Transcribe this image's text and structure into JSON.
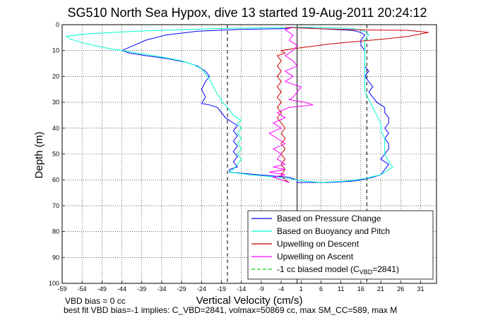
{
  "chart_data": {
    "type": "line",
    "title": "SG510 North Sea Hypox, dive 13 started 19-Aug-2011 20:24:12",
    "xlabel": "Vertical Velocity (cm/s)",
    "ylabel": "Depth (m)",
    "xlim": [
      -59,
      35
    ],
    "ylim": [
      0,
      100
    ],
    "y_reversed": true,
    "grid": true,
    "legend_position": "bottom-right",
    "x_ticks": [
      -59,
      -54,
      -49,
      -44,
      -39,
      -34,
      -29,
      -24,
      -19,
      -14,
      -9,
      -4,
      1,
      6,
      11,
      16,
      21,
      26,
      31
    ],
    "y_ticks": [
      0,
      10,
      20,
      30,
      40,
      50,
      60,
      70,
      80,
      90,
      100
    ],
    "vertical_lines": [
      {
        "x": -17.5,
        "style": "dashed",
        "color": "#000000"
      },
      {
        "x": 17.5,
        "style": "dashed",
        "color": "#000000"
      },
      {
        "x": 0,
        "style": "solid",
        "color": "#000000"
      }
    ],
    "series": [
      {
        "name": "Based on Pressure Change",
        "color": "#0000ff",
        "style": "solid",
        "points": [
          [
            -2,
            1
          ],
          [
            -2,
            1.5
          ],
          [
            -14,
            1.8
          ],
          [
            -25,
            2.5
          ],
          [
            -33,
            4
          ],
          [
            -38,
            6
          ],
          [
            -41,
            8
          ],
          [
            -44,
            10
          ],
          [
            -42,
            11
          ],
          [
            -38,
            12
          ],
          [
            -33,
            13
          ],
          [
            -28,
            14.5
          ],
          [
            -25,
            16
          ],
          [
            -23,
            18
          ],
          [
            -22,
            20
          ],
          [
            -23,
            22
          ],
          [
            -24,
            25
          ],
          [
            -23,
            28
          ],
          [
            -24,
            30.5
          ],
          [
            -22,
            31
          ],
          [
            -20,
            32
          ],
          [
            -19,
            34
          ],
          [
            -18,
            36
          ],
          [
            -16,
            38
          ],
          [
            -15,
            39
          ],
          [
            -16,
            41
          ],
          [
            -15,
            43
          ],
          [
            -16,
            45
          ],
          [
            -15,
            47
          ],
          [
            -16,
            49
          ],
          [
            -15,
            51
          ],
          [
            -16,
            53
          ],
          [
            -15,
            55
          ],
          [
            -17,
            56
          ],
          [
            -17,
            57
          ],
          [
            -10,
            58
          ],
          [
            -2,
            59
          ],
          [
            0,
            60
          ],
          [
            0,
            61
          ],
          [
            1,
            61
          ],
          [
            8,
            61
          ],
          [
            14,
            60.5
          ],
          [
            16,
            60
          ],
          [
            19,
            59
          ],
          [
            21,
            58
          ],
          [
            22,
            56
          ],
          [
            23,
            54
          ],
          [
            21,
            52
          ],
          [
            22,
            50
          ],
          [
            23,
            48
          ],
          [
            23,
            46
          ],
          [
            22,
            44
          ],
          [
            23,
            42
          ],
          [
            22,
            40
          ],
          [
            23,
            38
          ],
          [
            23,
            36
          ],
          [
            22,
            34
          ],
          [
            22,
            32
          ],
          [
            20,
            30
          ],
          [
            19,
            28
          ],
          [
            18,
            26
          ],
          [
            19,
            24
          ],
          [
            18,
            22
          ],
          [
            17,
            20
          ],
          [
            18,
            18
          ],
          [
            17,
            16
          ],
          [
            17,
            14
          ],
          [
            17,
            12
          ],
          [
            17,
            10
          ],
          [
            16,
            8
          ],
          [
            16,
            6
          ],
          [
            17,
            4
          ],
          [
            16,
            3
          ],
          [
            14,
            2.2
          ],
          [
            5,
            1.5
          ],
          [
            0,
            1
          ],
          [
            -2,
            1
          ]
        ]
      },
      {
        "name": "Based on Buoyancy and Pitch",
        "color": "#00ffcc",
        "style": "solid",
        "points": [
          [
            -1,
            1
          ],
          [
            -20,
            1.5
          ],
          [
            -40,
            2.5
          ],
          [
            -52,
            3.5
          ],
          [
            -58,
            4.5
          ],
          [
            -57,
            5.5
          ],
          [
            -54,
            7
          ],
          [
            -48,
            9
          ],
          [
            -44,
            10
          ],
          [
            -40,
            11
          ],
          [
            -34,
            12.5
          ],
          [
            -29,
            14
          ],
          [
            -26,
            15.5
          ],
          [
            -24,
            17
          ],
          [
            -23,
            19
          ],
          [
            -22,
            21
          ],
          [
            -21,
            24
          ],
          [
            -20,
            27
          ],
          [
            -19,
            29
          ],
          [
            -19,
            30
          ],
          [
            -18,
            31
          ],
          [
            -17,
            33
          ],
          [
            -16,
            35
          ],
          [
            -14,
            37
          ],
          [
            -15,
            38
          ],
          [
            -14,
            40
          ],
          [
            -15,
            42
          ],
          [
            -14,
            44
          ],
          [
            -15,
            46
          ],
          [
            -14,
            48
          ],
          [
            -15,
            50
          ],
          [
            -14,
            52
          ],
          [
            -15,
            54
          ],
          [
            -16,
            56
          ],
          [
            -17,
            57
          ],
          [
            -12,
            58
          ],
          [
            -5,
            59
          ],
          [
            0,
            60
          ],
          [
            2,
            60.5
          ],
          [
            6,
            61
          ],
          [
            12,
            60.5
          ],
          [
            17,
            59.5
          ],
          [
            21,
            58
          ],
          [
            24,
            55
          ],
          [
            23,
            53
          ],
          [
            22,
            50
          ],
          [
            22,
            47
          ],
          [
            22,
            44
          ],
          [
            21,
            41
          ],
          [
            21,
            38
          ],
          [
            20,
            35
          ],
          [
            19,
            32
          ],
          [
            18,
            29
          ],
          [
            17,
            26
          ],
          [
            17,
            23
          ],
          [
            17,
            20
          ],
          [
            17,
            17
          ],
          [
            17,
            14
          ],
          [
            17,
            11
          ],
          [
            17,
            8
          ],
          [
            17,
            6
          ],
          [
            18,
            4
          ],
          [
            17,
            2.5
          ],
          [
            14,
            1.5
          ],
          [
            5,
            1
          ],
          [
            -1,
            1
          ]
        ]
      },
      {
        "name": "Upwelling on Descent",
        "color": "#cc0000",
        "style": "solid",
        "points": [
          [
            -3,
            1
          ],
          [
            4,
            1.5
          ],
          [
            15,
            2
          ],
          [
            28,
            2.2
          ],
          [
            33,
            3
          ],
          [
            28,
            4.5
          ],
          [
            22,
            5.5
          ],
          [
            15,
            6.5
          ],
          [
            8,
            7.5
          ],
          [
            3,
            8.5
          ],
          [
            -2,
            9.5
          ],
          [
            -4,
            10
          ],
          [
            -3,
            11
          ],
          [
            -5,
            12
          ],
          [
            -4,
            14
          ],
          [
            -5,
            16
          ],
          [
            -4,
            18
          ],
          [
            -5,
            20
          ],
          [
            -4,
            22
          ],
          [
            -5,
            24
          ],
          [
            -4,
            26
          ],
          [
            -5,
            28
          ],
          [
            -4,
            30
          ],
          [
            -5,
            32
          ],
          [
            -4,
            34
          ],
          [
            -5,
            36
          ],
          [
            -4,
            38
          ],
          [
            -3,
            40
          ],
          [
            -4,
            42
          ],
          [
            -3,
            44
          ],
          [
            -4,
            46
          ],
          [
            -3,
            48
          ],
          [
            -4,
            50
          ],
          [
            -3,
            52
          ],
          [
            -4,
            54
          ],
          [
            -3,
            56
          ],
          [
            -4,
            58
          ],
          [
            -3,
            60
          ],
          [
            -2,
            61
          ]
        ]
      },
      {
        "name": "Upwelling on Ascent",
        "color": "#ff00ff",
        "style": "solid",
        "points": [
          [
            -2,
            61
          ],
          [
            -6,
            59
          ],
          [
            -3,
            58
          ],
          [
            -7,
            57
          ],
          [
            -3,
            56
          ],
          [
            -6,
            55
          ],
          [
            -3,
            54
          ],
          [
            -5,
            52
          ],
          [
            -4,
            50
          ],
          [
            -6,
            48
          ],
          [
            -3,
            46
          ],
          [
            -5,
            44
          ],
          [
            -7,
            42
          ],
          [
            -4,
            40
          ],
          [
            -6,
            38
          ],
          [
            -3,
            36
          ],
          [
            -5,
            34
          ],
          [
            -2,
            32
          ],
          [
            4,
            31
          ],
          [
            2,
            30
          ],
          [
            -2,
            29
          ],
          [
            -1,
            28
          ],
          [
            0,
            26
          ],
          [
            1,
            24
          ],
          [
            -3,
            22
          ],
          [
            -1,
            20
          ],
          [
            -3,
            18
          ],
          [
            0,
            16
          ],
          [
            -1,
            14
          ],
          [
            -3,
            12
          ],
          [
            -1,
            10
          ],
          [
            0,
            8
          ],
          [
            -2,
            6
          ],
          [
            -1,
            4
          ],
          [
            -3,
            2
          ],
          [
            -1,
            1
          ]
        ]
      },
      {
        "name": "-1 cc biased model (C_VBD=2841)",
        "color": "#00cc00",
        "style": "dashed",
        "points": []
      }
    ]
  },
  "legend": {
    "items": [
      {
        "label": "Based on Pressure Change",
        "color": "#0000ff",
        "dashed": false
      },
      {
        "label": "Based on Buoyancy and Pitch",
        "color": "#00ffcc",
        "dashed": false
      },
      {
        "label": "Upwelling on Descent",
        "color": "#cc0000",
        "dashed": false
      },
      {
        "label": "Upwelling on Ascent",
        "color": "#ff00ff",
        "dashed": false
      }
    ],
    "model_label_prefix": "-1 cc biased model (C",
    "model_label_sub": "VBD",
    "model_label_suffix": "=2841)",
    "model_color": "#00cc00"
  },
  "notes": {
    "line1": "VBD bias = 0 cc",
    "line2": "best fit VBD bias=-1 implies: C_VBD=2841, volmax=50869 cc, max SM_CC=589, max M"
  }
}
